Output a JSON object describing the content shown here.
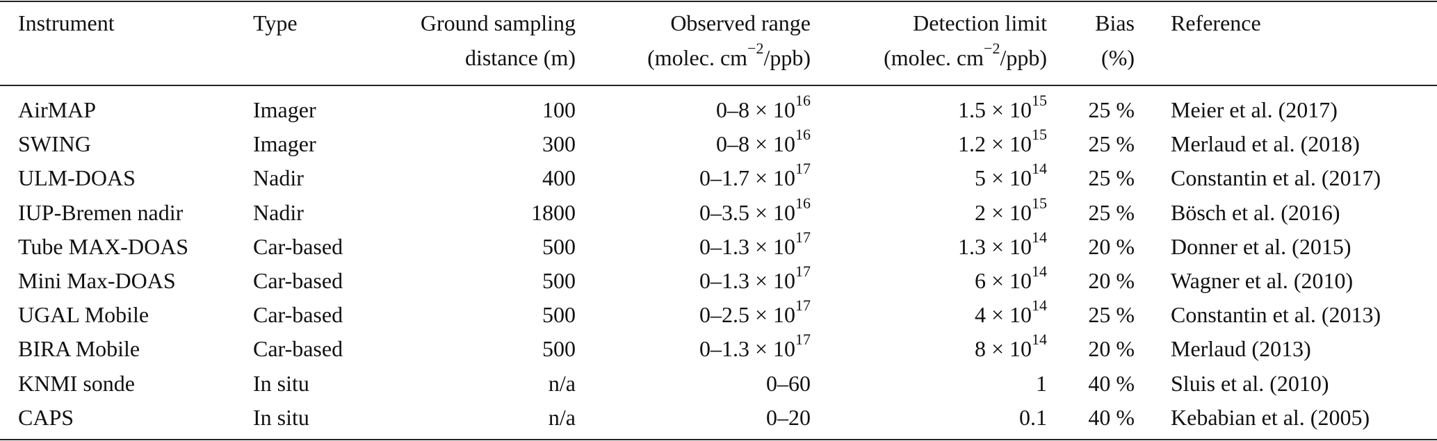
{
  "table": {
    "header": [
      [
        "Instrument"
      ],
      [
        "Type"
      ],
      [
        "Ground sampling",
        "distance (m)"
      ],
      [
        "Observed range",
        [
          "(molec. cm",
          {
            "sup": "−2"
          },
          "/ppb)"
        ]
      ],
      [
        "Detection limit",
        [
          "(molec. cm",
          {
            "sup": "−2"
          },
          "/ppb)"
        ]
      ],
      [
        "Bias",
        "(%)"
      ],
      [
        "Reference"
      ]
    ],
    "rows": [
      [
        "AirMAP",
        "Imager",
        "100",
        [
          "0–8 × 10",
          {
            "sup": "16"
          }
        ],
        [
          "1.5 × 10",
          {
            "sup": "15"
          }
        ],
        "25 %",
        "Meier et al. (2017)"
      ],
      [
        "SWING",
        "Imager",
        "300",
        [
          "0–8 × 10",
          {
            "sup": "16"
          }
        ],
        [
          "1.2 × 10",
          {
            "sup": "15"
          }
        ],
        "25 %",
        "Merlaud et al. (2018)"
      ],
      [
        "ULM-DOAS",
        "Nadir",
        "400",
        [
          "0–1.7 × 10",
          {
            "sup": "17"
          }
        ],
        [
          "5 × 10",
          {
            "sup": "14"
          }
        ],
        "25 %",
        "Constantin et al. (2017)"
      ],
      [
        "IUP-Bremen nadir",
        "Nadir",
        "1800",
        [
          "0–3.5 × 10",
          {
            "sup": "16"
          }
        ],
        [
          "2 × 10",
          {
            "sup": "15"
          }
        ],
        "25 %",
        "Bösch et al. (2016)"
      ],
      [
        "Tube MAX-DOAS",
        "Car-based",
        "500",
        [
          "0–1.3 × 10",
          {
            "sup": "17"
          }
        ],
        [
          "1.3 × 10",
          {
            "sup": "14"
          }
        ],
        "20 %",
        "Donner et al. (2015)"
      ],
      [
        "Mini Max-DOAS",
        "Car-based",
        "500",
        [
          "0–1.3 × 10",
          {
            "sup": "17"
          }
        ],
        [
          "6 × 10",
          {
            "sup": "14"
          }
        ],
        "20 %",
        "Wagner et al. (2010)"
      ],
      [
        "UGAL Mobile",
        "Car-based",
        "500",
        [
          "0–2.5 × 10",
          {
            "sup": "17"
          }
        ],
        [
          "4 × 10",
          {
            "sup": "14"
          }
        ],
        "25 %",
        "Constantin et al. (2013)"
      ],
      [
        "BIRA Mobile",
        "Car-based",
        "500",
        [
          "0–1.3 × 10",
          {
            "sup": "17"
          }
        ],
        [
          "8 × 10",
          {
            "sup": "14"
          }
        ],
        "20 %",
        "Merlaud (2013)"
      ],
      [
        "KNMI sonde",
        "In situ",
        "n/a",
        "0–60",
        "1",
        "40 %",
        "Sluis et al. (2010)"
      ],
      [
        "CAPS",
        "In situ",
        "n/a",
        "0–20",
        "0.1",
        "40 %",
        "Kebabian et al. (2005)"
      ]
    ]
  }
}
